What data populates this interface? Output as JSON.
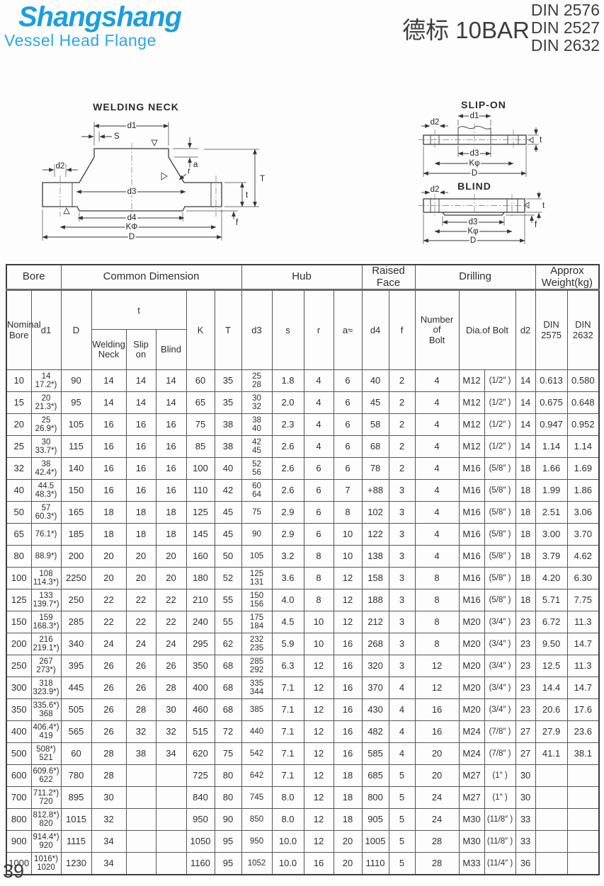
{
  "header": {
    "brand_name": "Shangshang",
    "brand_subtitle": "Vessel Head Flange",
    "brand_color": "#1aa0dd",
    "rating_cn": "德标 10BAR",
    "din_standards": [
      "DIN 2576",
      "DIN 2527",
      "DIN 2632"
    ]
  },
  "diagrams": {
    "welding_neck": {
      "title": "WELDING NECK",
      "labels": {
        "d1": "d1",
        "s": "S",
        "a": "a",
        "r": "r",
        "T": "T",
        "t": "t",
        "f": "f",
        "d2": "d2",
        "d3": "d3",
        "d4": "d4",
        "k": "KΦ",
        "D": "D"
      }
    },
    "slip_on": {
      "title": "SLIP-ON",
      "labels": {
        "d1": "d1",
        "d2": "d2",
        "d3": "d3",
        "k": "Kφ",
        "D": "D",
        "t": "t"
      }
    },
    "blind": {
      "title": "BLIND",
      "labels": {
        "d2": "d2",
        "d3": "d3",
        "k": "Kφ",
        "D": "D",
        "t": "t",
        "f": "f"
      }
    }
  },
  "table": {
    "groups": [
      {
        "label": "Bore"
      },
      {
        "label": "Common Dimension"
      },
      {
        "label": "Hub"
      },
      {
        "label": "Raised Face"
      },
      {
        "label": "Drilling"
      },
      {
        "label": "Approx\nWeight(kg)"
      }
    ],
    "headers": {
      "nominal_bore": "Nominal\nBore",
      "d1": "d1",
      "D": "D",
      "t": "t",
      "t_welding_neck": "Welding\nNeck",
      "t_slip_on": "Slip\non",
      "t_blind": "Blind",
      "K": "K",
      "T": "T",
      "d3": "d3",
      "s": "s",
      "r": "r",
      "a": "a≈",
      "d4": "d4",
      "f": "f",
      "number_of_bolt": "Number\nof\nBolt",
      "dia_of_bolt": "Dia.of Bolt",
      "d2": "d2",
      "weight_din_2575": "DIN\n2575",
      "weight_din_2632": "DIN\n2632"
    },
    "rows": [
      [
        "10",
        "14\n17.2*)",
        "90",
        "14",
        "14",
        "14",
        "60",
        "35",
        "25\n28",
        "1.8",
        "4",
        "6",
        "40",
        "2",
        "4",
        "M12",
        "(1/2″ )",
        "14",
        "0.613",
        "0.580"
      ],
      [
        "15",
        "20\n21.3*)",
        "95",
        "14",
        "14",
        "14",
        "65",
        "35",
        "30\n32",
        "2.0",
        "4",
        "6",
        "45",
        "2",
        "4",
        "M12",
        "(1/2″ )",
        "14",
        "0.675",
        "0.648"
      ],
      [
        "20",
        "25\n26.9*)",
        "105",
        "16",
        "16",
        "16",
        "75",
        "38",
        "38\n40",
        "2.3",
        "4",
        "6",
        "58",
        "2",
        "4",
        "M12",
        "(1/2″ )",
        "14",
        "0.947",
        "0.952"
      ],
      [
        "25",
        "30\n33.7*)",
        "115",
        "16",
        "16",
        "16",
        "85",
        "38",
        "42\n45",
        "2.6",
        "4",
        "6",
        "68",
        "2",
        "4",
        "M12",
        "(1/2″ )",
        "14",
        "1.14",
        "1.14"
      ],
      [
        "32",
        "38\n42.4*)",
        "140",
        "16",
        "16",
        "16",
        "100",
        "40",
        "52\n56",
        "2.6",
        "6",
        "6",
        "78",
        "2",
        "4",
        "M16",
        "(5/8″ )",
        "18",
        "1.66",
        "1.69"
      ],
      [
        "40",
        "44.5\n48.3*)",
        "150",
        "16",
        "16",
        "16",
        "110",
        "42",
        "60\n64",
        "2.6",
        "6",
        "7",
        "+88",
        "3",
        "4",
        "M16",
        "(5/8″ )",
        "18",
        "1.99",
        "1.86"
      ],
      [
        "50",
        "57\n60.3*)",
        "165",
        "18",
        "18",
        "18",
        "125",
        "45",
        "75",
        "2.9",
        "6",
        "8",
        "102",
        "3",
        "4",
        "M16",
        "(5/8″ )",
        "18",
        "2.51",
        "3.06"
      ],
      [
        "65",
        "76.1*)",
        "185",
        "18",
        "18",
        "18",
        "145",
        "45",
        "90",
        "2.9",
        "6",
        "10",
        "122",
        "3",
        "4",
        "M16",
        "(5/8″ )",
        "18",
        "3.00",
        "3.70"
      ],
      [
        "80",
        "88.9*)",
        "200",
        "20",
        "20",
        "20",
        "160",
        "50",
        "105",
        "3.2",
        "8",
        "10",
        "138",
        "3",
        "4",
        "M16",
        "(5/8″ )",
        "18",
        "3.79",
        "4.62"
      ],
      [
        "100",
        "108\n114.3*)",
        "2250",
        "20",
        "20",
        "20",
        "180",
        "52",
        "125\n131",
        "3.6",
        "8",
        "12",
        "158",
        "3",
        "8",
        "M16",
        "(5/8″ )",
        "18",
        "4.20",
        "6.30"
      ],
      [
        "125",
        "133\n139.7*)",
        "250",
        "22",
        "22",
        "22",
        "210",
        "55",
        "150\n156",
        "4.0",
        "8",
        "12",
        "188",
        "3",
        "8",
        "M16",
        "(5/8″ )",
        "18",
        "5.71",
        "7.75"
      ],
      [
        "150",
        "159\n168.3*)",
        "285",
        "22",
        "22",
        "22",
        "240",
        "55",
        "175\n184",
        "4.5",
        "10",
        "12",
        "212",
        "3",
        "8",
        "M20",
        "(3/4″ )",
        "23",
        "6.72",
        "11.3"
      ],
      [
        "200",
        "216\n219.1*)",
        "340",
        "24",
        "24",
        "24",
        "295",
        "62",
        "232\n235",
        "5.9",
        "10",
        "16",
        "268",
        "3",
        "8",
        "M20",
        "(3/4″ )",
        "23",
        "9.50",
        "14.7"
      ],
      [
        "250",
        "267\n273*)",
        "395",
        "26",
        "26",
        "26",
        "350",
        "68",
        "285\n292",
        "6.3",
        "12",
        "16",
        "320",
        "3",
        "12",
        "M20",
        "(3/4″ )",
        "23",
        "12.5",
        "11.3"
      ],
      [
        "300",
        "318\n323.9*)",
        "445",
        "26",
        "26",
        "28",
        "400",
        "68",
        "335\n344",
        "7.1",
        "12",
        "16",
        "370",
        "4",
        "12",
        "M20",
        "(3/4″ )",
        "23",
        "14.4",
        "14.7"
      ],
      [
        "350",
        "335.6*)\n368",
        "505",
        "26",
        "28",
        "30",
        "460",
        "68",
        "385",
        "7.1",
        "12",
        "16",
        "430",
        "4",
        "16",
        "M20",
        "(3/4″ )",
        "23",
        "20.6",
        "17.6"
      ],
      [
        "400",
        "406.4*)\n419",
        "565",
        "26",
        "32",
        "32",
        "515",
        "72",
        "440",
        "7.1",
        "12",
        "16",
        "482",
        "4",
        "16",
        "M24",
        "(7/8″ )",
        "27",
        "27.9",
        "23.6"
      ],
      [
        "500",
        "508*)\n521",
        "60",
        "28",
        "38",
        "34",
        "620",
        "75",
        "542",
        "7.1",
        "12",
        "16",
        "585",
        "4",
        "20",
        "M24",
        "(7/8″ )",
        "27",
        "41.1",
        "38.1"
      ],
      [
        "600",
        "609.6*)\n622",
        "780",
        "28",
        "",
        "",
        "725",
        "80",
        "642",
        "7.1",
        "12",
        "18",
        "685",
        "5",
        "20",
        "M27",
        "(1″ )",
        "30",
        "",
        ""
      ],
      [
        "700",
        "711.2*)\n720",
        "895",
        "30",
        "",
        "",
        "840",
        "80",
        "745",
        "8.0",
        "12",
        "18",
        "800",
        "5",
        "24",
        "M27",
        "(1″ )",
        "30",
        "",
        ""
      ],
      [
        "800",
        "812.8*)\n820",
        "1015",
        "32",
        "",
        "",
        "950",
        "90",
        "850",
        "8.0",
        "12",
        "18",
        "905",
        "5",
        "24",
        "M30",
        "(11/8″ )",
        "33",
        "",
        ""
      ],
      [
        "900",
        "914.4*)\n920",
        "1115",
        "34",
        "",
        "",
        "1050",
        "95",
        "950",
        "10.0",
        "12",
        "20",
        "1005",
        "5",
        "28",
        "M30",
        "(11/8″ )",
        "33",
        "",
        ""
      ],
      [
        "1000",
        "1016*)\n1020",
        "1230",
        "34",
        "",
        "",
        "1160",
        "95",
        "1052",
        "10.0",
        "16",
        "20",
        "1110",
        "5",
        "28",
        "M33",
        "(11/4″ )",
        "36",
        "",
        ""
      ]
    ]
  },
  "footer": {
    "page_number": "39"
  }
}
